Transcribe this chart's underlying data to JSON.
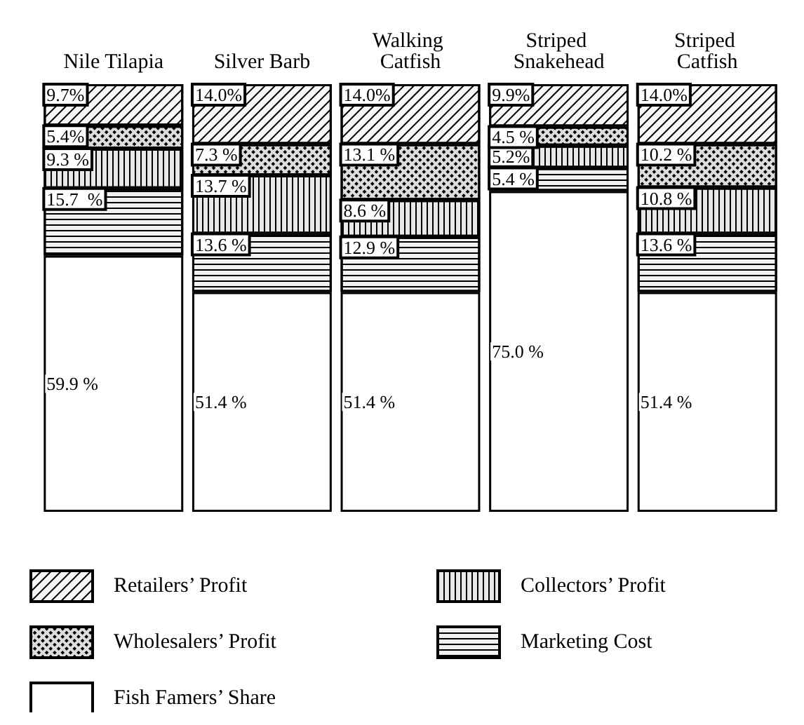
{
  "chart_data": {
    "type": "bar",
    "stacked": true,
    "categories": [
      "Nile Tilapia",
      "Silver Barb",
      "Walking Catfish",
      "Striped Snakehead",
      "Striped Catfish"
    ],
    "series": [
      {
        "name": "Fish Famers’ Share",
        "color": "#ffffff",
        "values": [
          59.9,
          51.4,
          51.4,
          75.0,
          51.4
        ],
        "value_labels": [
          "59.9 %",
          "51.4 %",
          "51.4 %",
          "75.0 %",
          "51.4 %"
        ]
      },
      {
        "name": "Marketing Cost",
        "color": "#f2f2f2",
        "values": [
          15.7,
          13.6,
          12.9,
          5.4,
          13.6
        ],
        "value_labels": [
          "15.7  %",
          "13.6 %",
          "12.9 %",
          "5.4 %",
          "13.6 %"
        ]
      },
      {
        "name": "Collectors’ Profit",
        "color": "#e8e8e8",
        "values": [
          9.3,
          13.7,
          8.6,
          5.2,
          10.8
        ],
        "value_labels": [
          "9.3 %",
          "13.7 %",
          "8.6 %",
          "5.2%",
          "10.8 %"
        ]
      },
      {
        "name": "Wholesalers’ Profit",
        "color": "#dddddd",
        "values": [
          5.4,
          7.3,
          13.1,
          4.5,
          10.2
        ],
        "value_labels": [
          "5.4%",
          "7.3 %",
          "13.1 %",
          "4.5 %",
          "10.2 %"
        ]
      },
      {
        "name": "Retailers’ Profit",
        "color": "#f7f7f7",
        "values": [
          9.7,
          14.0,
          14.0,
          9.9,
          14.0
        ],
        "value_labels": [
          "9.7%",
          "14.0%",
          "14.0%",
          "9.9%",
          "14.0%"
        ]
      }
    ],
    "legend": "bottom"
  }
}
